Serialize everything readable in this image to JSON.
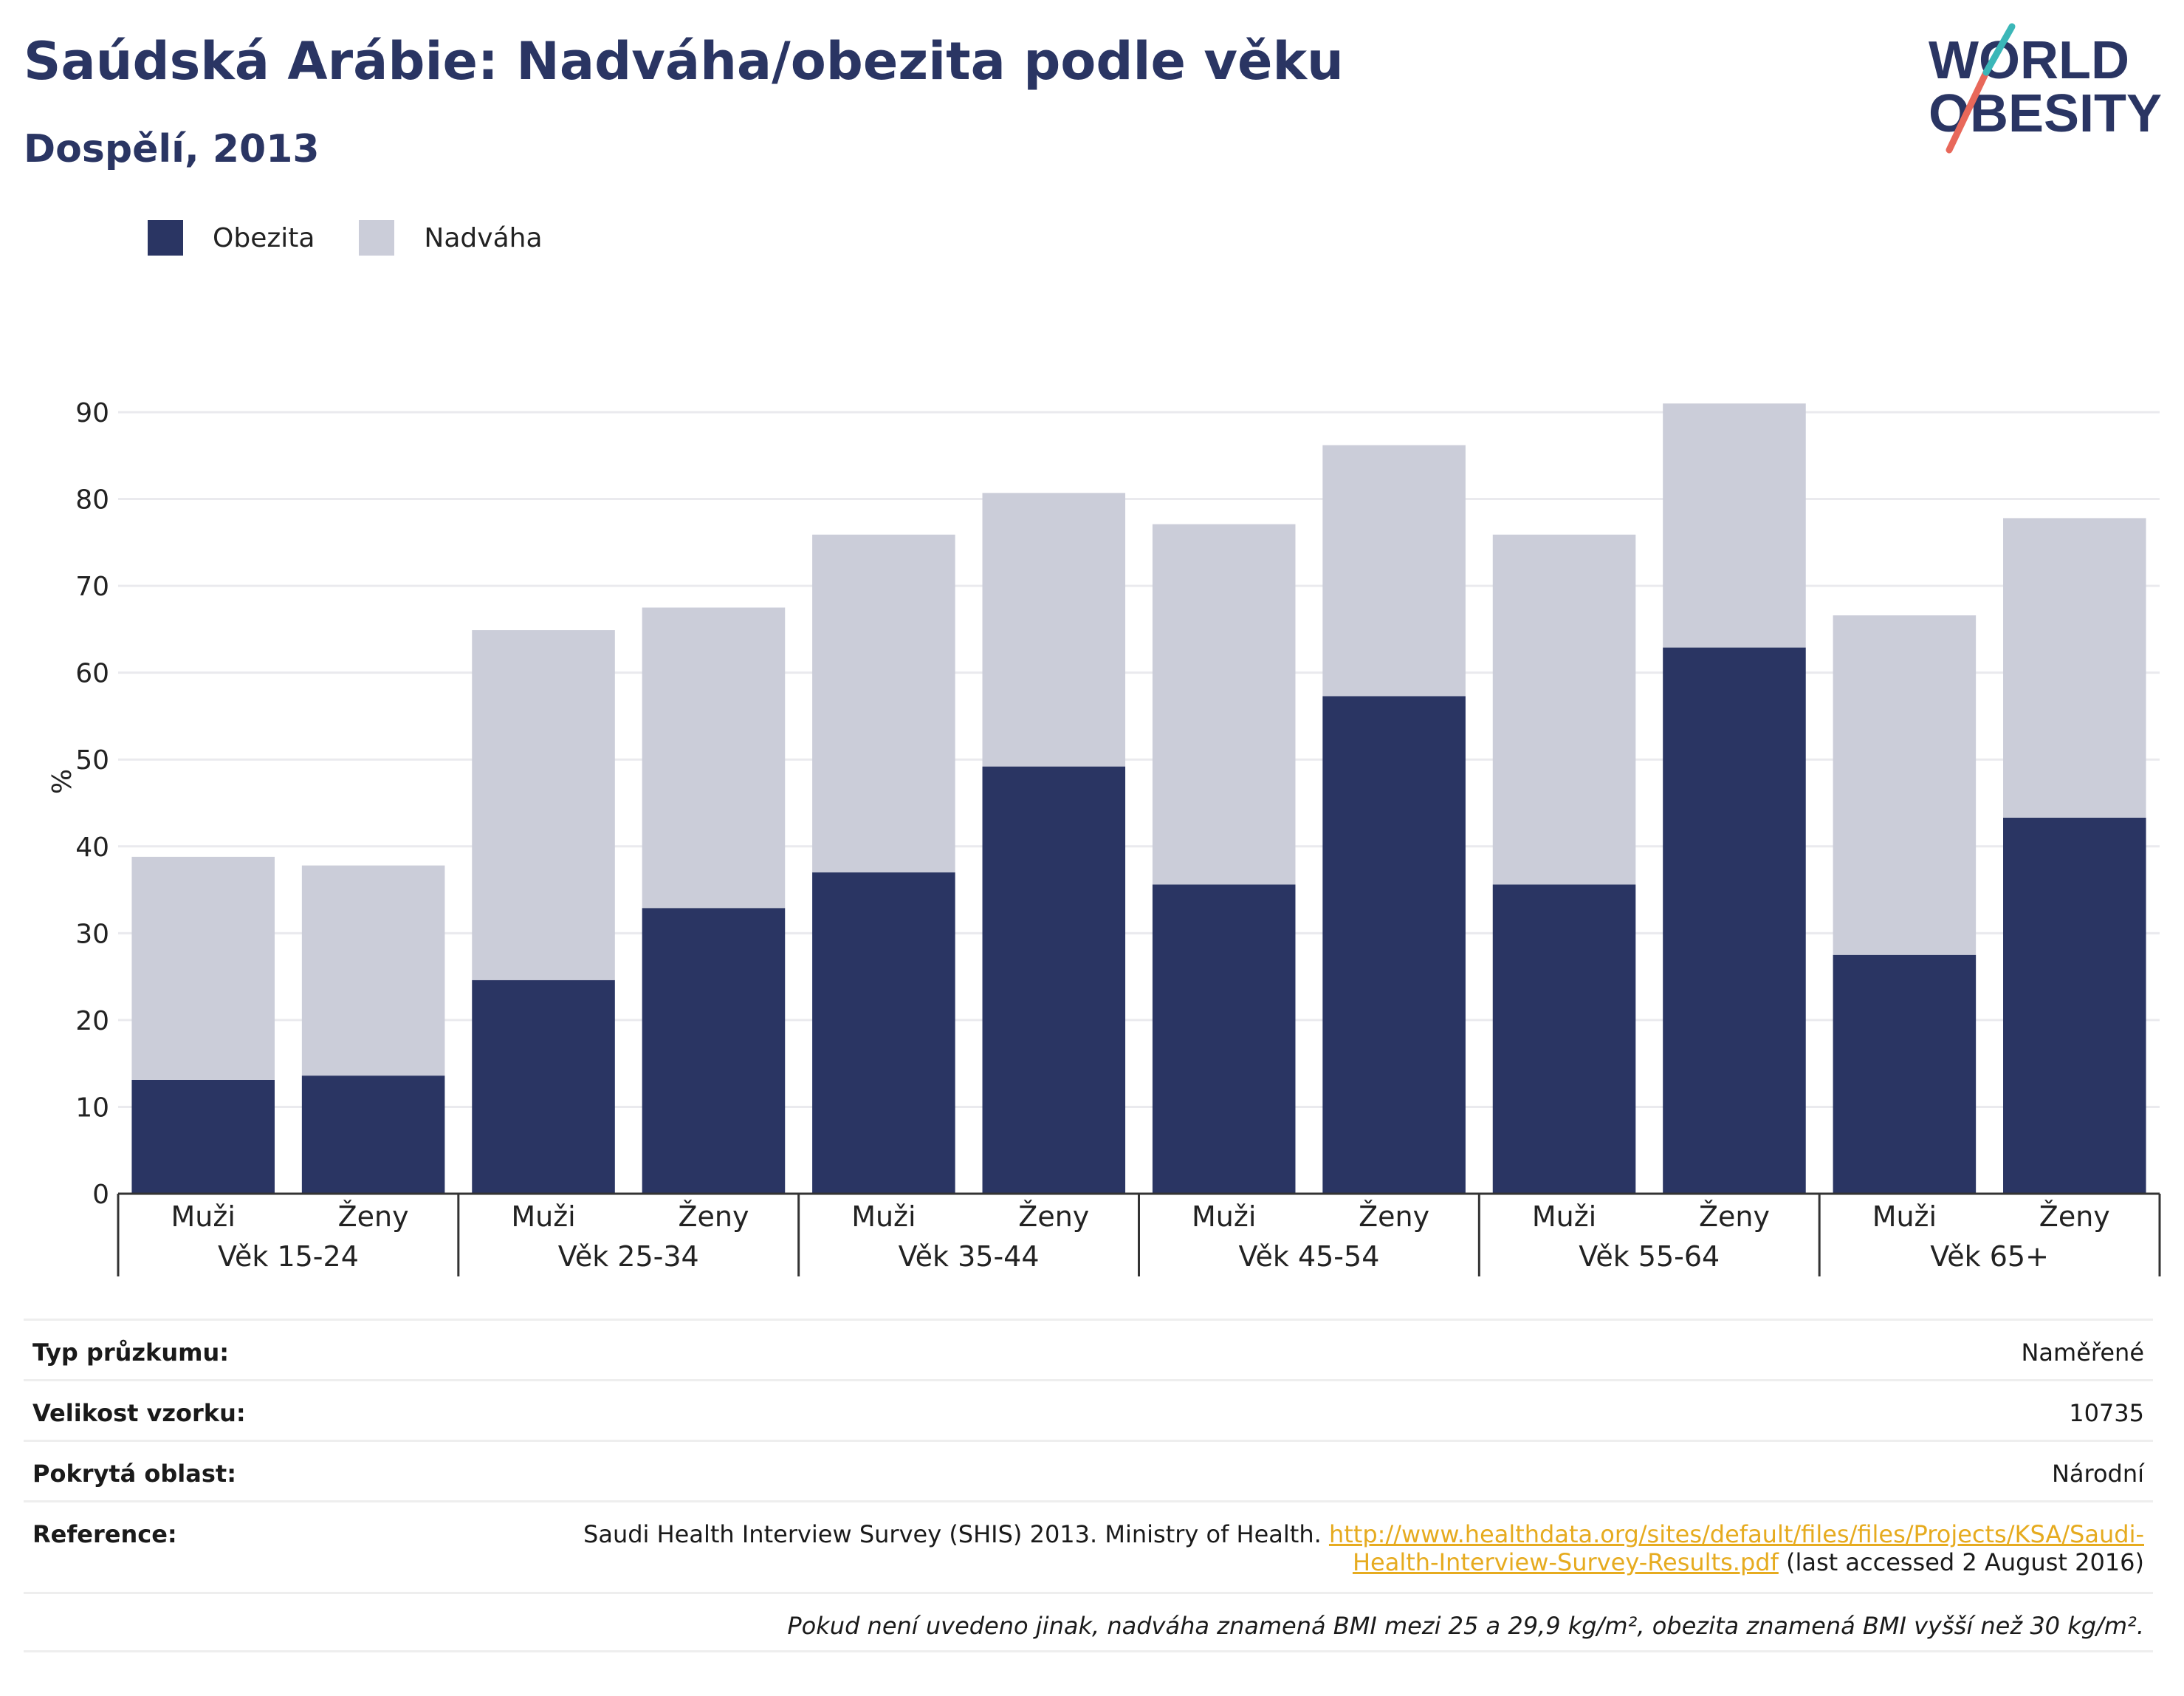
{
  "header": {
    "title": "Saúdská Arábie: Nadváha/obezita podle věku",
    "subtitle": "Dospělí, 2013"
  },
  "logo": {
    "line1": "WORLD",
    "line2": "OBESITY",
    "colors": {
      "text": "#2a3563",
      "slash_red": "#e8685a",
      "slash_teal": "#3bb7b8"
    }
  },
  "legend": [
    {
      "label": "Obezita",
      "color": "#2a3563"
    },
    {
      "label": "Nadváha",
      "color": "#cbcdd9"
    }
  ],
  "chart_data": {
    "type": "bar",
    "stacked": true,
    "ylabel": "%",
    "ylim": [
      0,
      90
    ],
    "yticks": [
      0,
      10,
      20,
      30,
      40,
      50,
      60,
      70,
      80,
      90
    ],
    "grid": true,
    "legend_position": "top-left",
    "groups": [
      "Věk 15-24",
      "Věk 25-34",
      "Věk 35-44",
      "Věk 45-54",
      "Věk 55-64",
      "Věk 65+"
    ],
    "subcategories": [
      "Muži",
      "Ženy"
    ],
    "series": [
      {
        "name": "Obezita",
        "color": "#2a3563",
        "values": [
          13.1,
          13.6,
          24.6,
          32.9,
          37.0,
          49.2,
          35.6,
          57.3,
          35.6,
          62.9,
          27.5,
          43.3
        ]
      },
      {
        "name": "Nadváha",
        "color": "#cbcdd9",
        "values": [
          25.7,
          24.2,
          40.3,
          34.6,
          38.9,
          31.5,
          41.5,
          28.9,
          40.3,
          28.1,
          39.1,
          34.5
        ]
      }
    ]
  },
  "info": {
    "survey_type_label": "Typ průzkumu:",
    "survey_type_value": "Naměřené",
    "sample_size_label": "Velikost vzorku:",
    "sample_size_value": "10735",
    "area_label": "Pokrytá oblast:",
    "area_value": "Národní",
    "reference_label": "Reference:",
    "reference_text": "Saudi Health Interview Survey (SHIS) 2013. Ministry of Health.",
    "reference_link_1": "http://www.healthdata.org/sites/default/files/files/Projects/KSA/Saudi-",
    "reference_link_2": "Health-Interview-Survey-Results.pdf",
    "reference_suffix": "(last accessed 2 August 2016)",
    "note": "Pokud není uvedeno jinak, nadváha znamená BMI mezi 25 a 29,9 kg/m², obezita znamená BMI vyšší než 30 kg/m²."
  }
}
